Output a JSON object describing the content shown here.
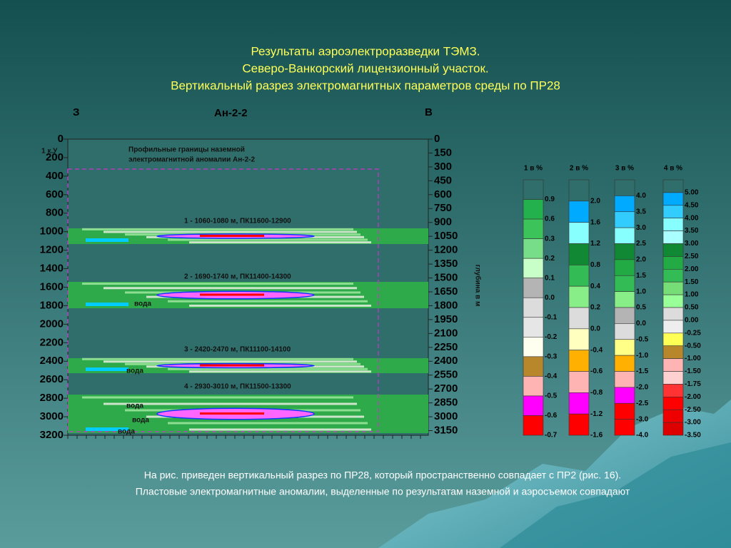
{
  "slide": {
    "title": [
      "Результаты аэроэлектроразведки ТЭМЗ.",
      "Северо-Ванкорский лицензионный участок.",
      "Вертикальный разрез электромагнитных параметров среды по ПР28"
    ],
    "section": {
      "west": "З",
      "profile": "Ан-2-2",
      "east": "В",
      "corner_label": "1 к.У",
      "left_ticks": [
        "0",
        "200",
        "400",
        "600",
        "800",
        "1000",
        "1200",
        "1400",
        "1600",
        "1800",
        "2000",
        "2200",
        "2400",
        "2600",
        "2800",
        "3000",
        "3200"
      ],
      "right_ticks": [
        "0",
        "150",
        "300",
        "450",
        "600",
        "750",
        "900",
        "1050",
        "1200",
        "1350",
        "1500",
        "1650",
        "1800",
        "1950",
        "2100",
        "2250",
        "2400",
        "2550",
        "2700",
        "2850",
        "3000",
        "3150"
      ],
      "right_axis_label": "глубина в м",
      "boundary_note": [
        "Профильные границы наземной",
        "электромагнитной аномалии Ан-2-2"
      ],
      "layers": [
        "1 - 1060-1080 м, ПК11600-12900",
        "2 - 1690-1740 м, ПК11400-14300",
        "3 - 2420-2470 м, ПК11100-14100",
        "4 - 2930-3010 м, ПК11500-13300"
      ],
      "water": [
        "вода",
        "вода",
        "вода",
        "вода",
        "вода"
      ]
    },
    "legends": [
      {
        "title": "1 в %",
        "labels": [
          "0.9",
          "0.6",
          "0.3",
          "0.2",
          "0.1",
          "0.0",
          "-0.1",
          "-0.2",
          "-0.3",
          "-0.4",
          "-0.5",
          "-0.6",
          "-0.7"
        ],
        "colors": [
          "#2f6e6a",
          "#22b14c",
          "#3cc35a",
          "#77dd88",
          "#c8ffc8",
          "#b4b4b4",
          "#dcdcdc",
          "#e6e6e6",
          "#fffff0",
          "#b8862b",
          "#ffb4b4",
          "#ff00ff",
          "#ff0000"
        ]
      },
      {
        "title": "2 в %",
        "labels": [
          "2.0",
          "1.6",
          "1.2",
          "0.8",
          "0.4",
          "0.2",
          "0.0",
          "-0.4",
          "-0.6",
          "-0.8",
          "-1.2",
          "-1.6"
        ],
        "colors": [
          "#2f6e6a",
          "#00aaff",
          "#88ffff",
          "#118833",
          "#33bb55",
          "#88ee88",
          "#dcdcdc",
          "#ffffc0",
          "#ffb000",
          "#ffb4b4",
          "#ff00ff",
          "#ff0000"
        ]
      },
      {
        "title": "3 в %",
        "labels": [
          "4.0",
          "3.5",
          "3.0",
          "2.5",
          "2.0",
          "1.5",
          "1.0",
          "0.5",
          "0.0",
          "-0.5",
          "-1.0",
          "-1.5",
          "-2.0",
          "-2.5",
          "-3.0",
          "-4.0"
        ],
        "colors": [
          "#2f6e6a",
          "#00aaff",
          "#33ccff",
          "#88ffff",
          "#118833",
          "#22aa44",
          "#33bb55",
          "#88ee88",
          "#b4b4b4",
          "#dcdcdc",
          "#ffff88",
          "#ffb000",
          "#ffb4b4",
          "#ff00ff",
          "#ff0000",
          "#ff0000"
        ]
      },
      {
        "title": "4 в %",
        "labels": [
          "5.00",
          "4.50",
          "4.00",
          "3.50",
          "3.00",
          "2.50",
          "2.00",
          "1.50",
          "1.00",
          "0.50",
          "0.00",
          "-0.25",
          "-0.50",
          "-1.00",
          "-1.50",
          "-1.75",
          "-2.00",
          "-2.50",
          "-3.00",
          "-3.50"
        ],
        "colors": [
          "#2f6e6a",
          "#00aaff",
          "#33ccff",
          "#88ffff",
          "#aaffff",
          "#118833",
          "#22aa44",
          "#33bb55",
          "#77dd77",
          "#99ff99",
          "#dcdcdc",
          "#eeeeee",
          "#ffff55",
          "#b8862b",
          "#ffb4b4",
          "#ffd0d0",
          "#ff3333",
          "#ff0000",
          "#ee0000",
          "#dd0000"
        ]
      }
    ],
    "caption": [
      "На рис. приведен вертикальный разрез по ПР28, который пространственно совпадает с ПР2 (рис. 16).",
      "Пластовые электромагнитные аномалии, выделенные по результатам наземной и аэросъемок совпадают"
    ]
  }
}
